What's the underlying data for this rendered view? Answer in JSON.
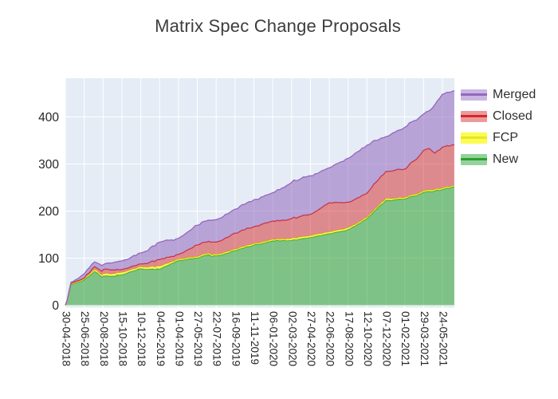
{
  "title": "Matrix Spec Change Proposals",
  "legend": {
    "items": [
      {
        "id": "merged",
        "label": "Merged",
        "fill": "#cab6e3",
        "line": "#9467bd"
      },
      {
        "id": "closed",
        "label": "Closed",
        "fill": "#eb9a9b",
        "line": "#d62728"
      },
      {
        "id": "fcp",
        "label": "FCP",
        "fill": "#fbfb50",
        "line": "#e6e62a"
      },
      {
        "id": "new",
        "label": "New",
        "fill": "#95d19e",
        "line": "#2ca02c"
      }
    ]
  },
  "chart_data": {
    "type": "area",
    "stacked": true,
    "title": "Matrix Spec Change Proposals",
    "plot_bg": "#e5ecf6",
    "grid_color": "#ffffff",
    "grid": true,
    "legend_position": "right",
    "tick_label_color": "#262626",
    "x_tick_labels": [
      "30-04-2018",
      "25-06-2018",
      "20-08-2018",
      "15-10-2018",
      "10-12-2018",
      "04-02-2019",
      "01-04-2019",
      "27-05-2019",
      "22-07-2019",
      "16-09-2019",
      "11-11-2019",
      "06-01-2020",
      "02-03-2020",
      "27-04-2020",
      "22-06-2020",
      "17-08-2020",
      "12-10-2020",
      "07-12-2020",
      "01-02-2021",
      "29-03-2021",
      "24-05-2021"
    ],
    "x_tick_interval_days": 56,
    "y_ticks": [
      0,
      100,
      200,
      300,
      400
    ],
    "ylim": [
      0,
      485
    ],
    "x_end_t": 20.63,
    "stack_order_bottom_to_top": [
      "New",
      "FCP",
      "Closed",
      "Merged"
    ],
    "samples_t": [
      0,
      0.1,
      0.3,
      0.5,
      1,
      1.55,
      1.95,
      2,
      2.5,
      3,
      3.5,
      4,
      4.5,
      5,
      5.5,
      6,
      6.5,
      7,
      7.6,
      7.8,
      8,
      8.5,
      9,
      9.5,
      10,
      10.5,
      11,
      11.5,
      12,
      12.5,
      13,
      13.5,
      14,
      14.5,
      15,
      15.5,
      16,
      16.5,
      17,
      17.5,
      18,
      18.5,
      19,
      19.3,
      19.6,
      20,
      20.63
    ],
    "series": [
      {
        "name": "New",
        "line": "#2ca02c",
        "fill": "rgba(44,160,44,0.55)",
        "values": [
          0,
          10,
          44,
          47,
          54,
          72,
          60,
          62,
          62,
          65,
          72,
          78,
          77,
          77,
          86,
          95,
          98,
          100,
          108,
          104,
          105,
          110,
          116,
          122,
          128,
          132,
          137,
          138,
          138,
          141,
          144,
          148,
          152,
          156,
          161,
          172,
          184,
          204,
          223,
          224,
          226,
          232,
          240,
          242,
          243,
          246,
          252
        ]
      },
      {
        "name": "FCP",
        "line": "#e6e62a",
        "fill": "rgba(252,252,40,0.7)",
        "values": [
          0,
          0,
          1,
          1,
          2,
          4,
          4,
          5,
          5,
          5,
          4,
          4,
          5,
          6,
          4,
          3,
          3,
          3,
          3,
          3,
          3,
          3,
          3,
          3,
          3,
          3,
          3,
          3,
          4,
          4,
          4,
          4,
          4,
          4,
          4,
          3,
          3,
          3,
          4,
          3,
          3,
          3,
          3,
          3,
          3,
          3,
          3
        ]
      },
      {
        "name": "Closed",
        "line": "#d62728",
        "fill": "rgba(214,39,40,0.5)",
        "values": [
          0,
          1,
          2,
          2,
          2,
          6,
          8,
          9,
          8,
          6,
          6,
          6,
          10,
          14,
          12,
          10,
          17,
          25,
          25,
          27,
          26,
          30,
          34,
          35,
          36,
          38,
          39,
          40,
          42,
          44,
          45,
          53,
          62,
          58,
          54,
          53,
          51,
          55,
          57,
          60,
          60,
          72,
          86,
          88,
          77,
          87,
          86
        ]
      },
      {
        "name": "Merged",
        "line": "#9467bd",
        "fill": "rgba(148,103,189,0.55)",
        "values": [
          0,
          1,
          2,
          3,
          9,
          10,
          12,
          10,
          15,
          18,
          20,
          23,
          30,
          37,
          36,
          34,
          38,
          42,
          45,
          47,
          48,
          50,
          51,
          54,
          57,
          58,
          60,
          68,
          77,
          80,
          82,
          78,
          74,
          84,
          93,
          98,
          102,
          88,
          74,
          81,
          89,
          85,
          77,
          80,
          103,
          112,
          115
        ]
      }
    ]
  }
}
